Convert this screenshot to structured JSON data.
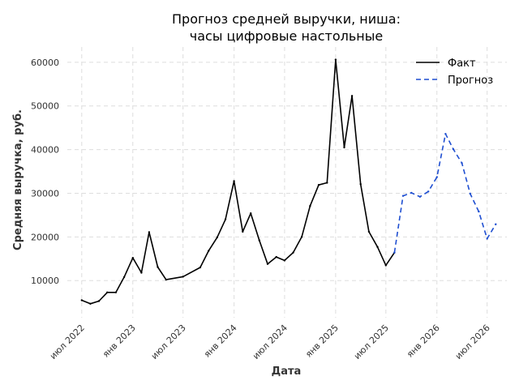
{
  "chart_data": {
    "type": "line",
    "title": [
      "Прогноз средней выручки, ниша:",
      "часы цифровые настольные"
    ],
    "xlabel": "Дата",
    "ylabel": "Средняя выручка, руб.",
    "x_ticks": [
      {
        "date": "2022-07-01",
        "label": "июл 2022"
      },
      {
        "date": "2023-01-01",
        "label": "янв 2023"
      },
      {
        "date": "2023-07-01",
        "label": "июл 2023"
      },
      {
        "date": "2024-01-01",
        "label": "янв 2024"
      },
      {
        "date": "2024-07-01",
        "label": "июл 2024"
      },
      {
        "date": "2025-01-01",
        "label": "янв 2025"
      },
      {
        "date": "2025-07-01",
        "label": "июл 2025"
      },
      {
        "date": "2026-01-01",
        "label": "янв 2026"
      },
      {
        "date": "2026-07-01",
        "label": "июл 2026"
      }
    ],
    "y_ticks": [
      10000,
      20000,
      30000,
      40000,
      50000,
      60000
    ],
    "y_tick_labels": [
      "10000",
      "20000",
      "30000",
      "40000",
      "50000",
      "60000"
    ],
    "xlim": [
      "2022-05-10",
      "2026-09-10"
    ],
    "ylim": [
      1500,
      63500
    ],
    "grid": true,
    "legend_position": "top-right",
    "series": [
      {
        "name": "Факт",
        "style": "solid",
        "color": "#000000",
        "points": [
          {
            "x": "2022-07-01",
            "y": 5500
          },
          {
            "x": "2022-08-01",
            "y": 4700
          },
          {
            "x": "2022-09-01",
            "y": 5300
          },
          {
            "x": "2022-10-01",
            "y": 7300
          },
          {
            "x": "2022-11-01",
            "y": 7300
          },
          {
            "x": "2022-12-01",
            "y": 10800
          },
          {
            "x": "2023-01-01",
            "y": 15200
          },
          {
            "x": "2023-02-01",
            "y": 11800
          },
          {
            "x": "2023-03-01",
            "y": 21100
          },
          {
            "x": "2023-04-01",
            "y": 13100
          },
          {
            "x": "2023-05-01",
            "y": 10200
          },
          {
            "x": "2023-07-01",
            "y": 10900
          },
          {
            "x": "2023-09-01",
            "y": 13000
          },
          {
            "x": "2023-10-01",
            "y": 16800
          },
          {
            "x": "2023-11-01",
            "y": 19900
          },
          {
            "x": "2023-12-01",
            "y": 24000
          },
          {
            "x": "2024-01-01",
            "y": 32800
          },
          {
            "x": "2024-02-01",
            "y": 21200
          },
          {
            "x": "2024-03-01",
            "y": 25400
          },
          {
            "x": "2024-04-01",
            "y": 19200
          },
          {
            "x": "2024-05-01",
            "y": 13800
          },
          {
            "x": "2024-06-01",
            "y": 15400
          },
          {
            "x": "2024-07-01",
            "y": 14600
          },
          {
            "x": "2024-08-01",
            "y": 16400
          },
          {
            "x": "2024-09-01",
            "y": 20000
          },
          {
            "x": "2024-10-01",
            "y": 27100
          },
          {
            "x": "2024-11-01",
            "y": 31900
          },
          {
            "x": "2024-12-01",
            "y": 32400
          },
          {
            "x": "2025-01-01",
            "y": 60600
          },
          {
            "x": "2025-02-01",
            "y": 40500
          },
          {
            "x": "2025-03-01",
            "y": 52300
          },
          {
            "x": "2025-04-01",
            "y": 32100
          },
          {
            "x": "2025-05-01",
            "y": 21200
          },
          {
            "x": "2025-06-01",
            "y": 17700
          },
          {
            "x": "2025-07-01",
            "y": 13500
          },
          {
            "x": "2025-08-01",
            "y": 16400
          }
        ]
      },
      {
        "name": "Прогноз",
        "style": "dashed",
        "color": "#1f4fd1",
        "points": [
          {
            "x": "2025-08-01",
            "y": 16400
          },
          {
            "x": "2025-09-01",
            "y": 29400
          },
          {
            "x": "2025-10-01",
            "y": 30100
          },
          {
            "x": "2025-11-01",
            "y": 29200
          },
          {
            "x": "2025-12-01",
            "y": 30400
          },
          {
            "x": "2026-01-01",
            "y": 33700
          },
          {
            "x": "2026-02-01",
            "y": 43600
          },
          {
            "x": "2026-03-01",
            "y": 40100
          },
          {
            "x": "2026-04-01",
            "y": 36900
          },
          {
            "x": "2026-05-01",
            "y": 29900
          },
          {
            "x": "2026-06-01",
            "y": 25800
          },
          {
            "x": "2026-07-01",
            "y": 19600
          },
          {
            "x": "2026-08-01",
            "y": 22900
          }
        ]
      }
    ]
  }
}
